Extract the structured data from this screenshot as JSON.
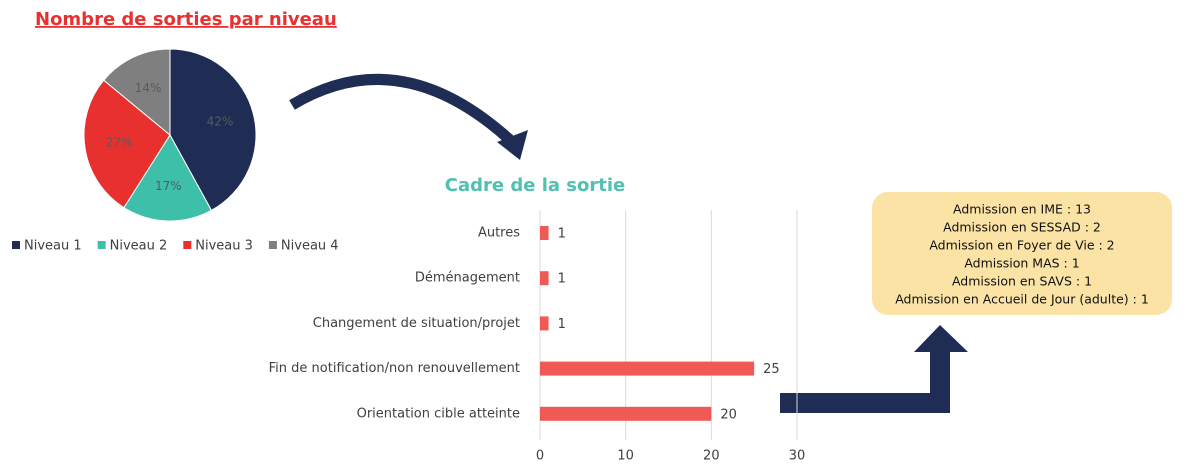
{
  "chart_data": [
    {
      "type": "pie",
      "title": "Nombre de sorties par niveau",
      "categories": [
        "Niveau 1",
        "Niveau 2",
        "Niveau 3",
        "Niveau 4"
      ],
      "values": [
        42,
        17,
        27,
        14
      ],
      "value_labels": [
        "42%",
        "17%",
        "27%",
        "14%"
      ],
      "colors": [
        "#1f2d55",
        "#3dbfaa",
        "#e8312f",
        "#7f7f7f"
      ],
      "legend": "bottom"
    },
    {
      "type": "hbar",
      "title": "Cadre de la sortie",
      "categories": [
        "Autres",
        "Déménagement",
        "Changement de situation/projet",
        "Fin de notification/non renouvellement",
        "Orientation cible atteinte"
      ],
      "values": [
        1,
        1,
        1,
        25,
        20
      ],
      "color": "#f05a55",
      "xlim": [
        0,
        30
      ],
      "xticks": [
        0,
        10,
        20,
        30
      ],
      "grid": true
    }
  ],
  "note": {
    "lines": [
      "Admission en IME : 13",
      "Admission en SESSAD : 2",
      "Admission en Foyer de Vie : 2",
      "Admission MAS : 1",
      "Admission en SAVS : 1",
      "Admission en Accueil de Jour (adulte) : 1"
    ]
  }
}
